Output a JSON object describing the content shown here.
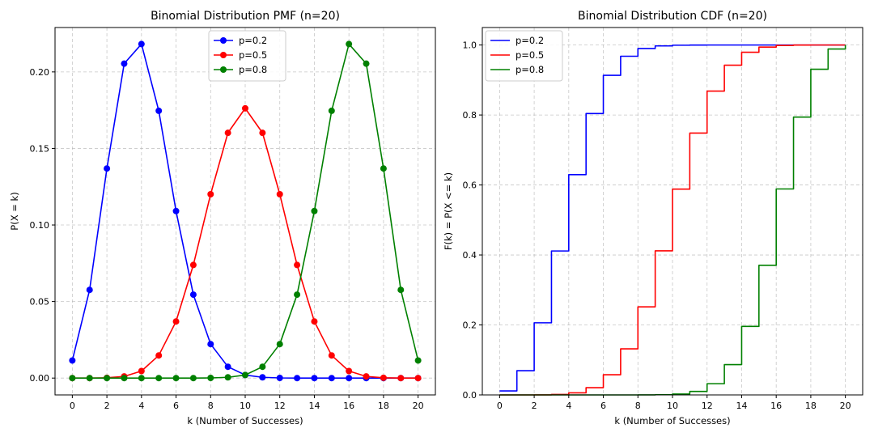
{
  "chart_data": [
    {
      "type": "line",
      "title": "Binomial Distribution PMF (n=20)",
      "xlabel": "k (Number of Successes)",
      "ylabel": "P(X = k)",
      "xlim": [
        -1,
        21
      ],
      "ylim": [
        -0.011,
        0.229
      ],
      "xticks": [
        0,
        2,
        4,
        6,
        8,
        10,
        12,
        14,
        16,
        18,
        20
      ],
      "xtick_labels": [
        "0",
        "2",
        "4",
        "6",
        "8",
        "10",
        "12",
        "14",
        "16",
        "18",
        "20"
      ],
      "yticks": [
        0.0,
        0.05,
        0.1,
        0.15,
        0.2
      ],
      "ytick_labels": [
        "0.00",
        "0.05",
        "0.10",
        "0.15",
        "0.20"
      ],
      "grid": true,
      "legend_position": "upper-center",
      "x": [
        0,
        1,
        2,
        3,
        4,
        5,
        6,
        7,
        8,
        9,
        10,
        11,
        12,
        13,
        14,
        15,
        16,
        17,
        18,
        19,
        20
      ],
      "series": [
        {
          "name": "p=0.2",
          "color": "#0000ff",
          "marker": "circle",
          "values": [
            0.0115,
            0.0576,
            0.1369,
            0.2054,
            0.2182,
            0.1746,
            0.1091,
            0.0545,
            0.0222,
            0.0074,
            0.002,
            0.0005,
            0.0001,
            0.0,
            0.0,
            0.0,
            0.0,
            0.0,
            0.0,
            0.0,
            0.0
          ]
        },
        {
          "name": "p=0.5",
          "color": "#ff0000",
          "marker": "circle",
          "values": [
            0.0,
            0.0,
            0.0002,
            0.0011,
            0.0046,
            0.0148,
            0.037,
            0.0739,
            0.1201,
            0.1602,
            0.1762,
            0.1602,
            0.1201,
            0.0739,
            0.037,
            0.0148,
            0.0046,
            0.0011,
            0.0002,
            0.0,
            0.0
          ]
        },
        {
          "name": "p=0.8",
          "color": "#008000",
          "marker": "circle",
          "values": [
            0.0,
            0.0,
            0.0,
            0.0,
            0.0,
            0.0,
            0.0,
            0.0,
            0.0001,
            0.0005,
            0.002,
            0.0074,
            0.0222,
            0.0545,
            0.1091,
            0.1746,
            0.2182,
            0.2054,
            0.1369,
            0.0576,
            0.0115
          ]
        }
      ]
    },
    {
      "type": "line",
      "style": "step",
      "title": "Binomial Distribution CDF (n=20)",
      "xlabel": "k (Number of Successes)",
      "ylabel": "F(k) = P(X <= k)",
      "xlim": [
        -1,
        21
      ],
      "ylim": [
        0.0,
        1.05
      ],
      "xticks": [
        0,
        2,
        4,
        6,
        8,
        10,
        12,
        14,
        16,
        18,
        20
      ],
      "xtick_labels": [
        "0",
        "2",
        "4",
        "6",
        "8",
        "10",
        "12",
        "14",
        "16",
        "18",
        "20"
      ],
      "yticks": [
        0.0,
        0.2,
        0.4,
        0.6,
        0.8,
        1.0
      ],
      "ytick_labels": [
        "0.0",
        "0.2",
        "0.4",
        "0.6",
        "0.8",
        "1.0"
      ],
      "grid": true,
      "legend_position": "upper-left",
      "x": [
        0,
        1,
        2,
        3,
        4,
        5,
        6,
        7,
        8,
        9,
        10,
        11,
        12,
        13,
        14,
        15,
        16,
        17,
        18,
        19,
        20
      ],
      "series": [
        {
          "name": "p=0.2",
          "color": "#0000ff",
          "values": [
            0.0115,
            0.0692,
            0.2061,
            0.4114,
            0.6296,
            0.8042,
            0.9133,
            0.9679,
            0.99,
            0.9974,
            0.9994,
            0.9999,
            1.0,
            1.0,
            1.0,
            1.0,
            1.0,
            1.0,
            1.0,
            1.0,
            1.0
          ]
        },
        {
          "name": "p=0.5",
          "color": "#ff0000",
          "values": [
            0.0,
            0.0,
            0.0002,
            0.0013,
            0.0059,
            0.0207,
            0.0577,
            0.1316,
            0.2517,
            0.4119,
            0.5881,
            0.7483,
            0.8684,
            0.9423,
            0.9793,
            0.9941,
            0.9987,
            0.9998,
            1.0,
            1.0,
            1.0
          ]
        },
        {
          "name": "p=0.8",
          "color": "#008000",
          "values": [
            0.0,
            0.0,
            0.0,
            0.0,
            0.0,
            0.0,
            0.0,
            0.0,
            0.0001,
            0.0006,
            0.0026,
            0.01,
            0.0321,
            0.0867,
            0.1958,
            0.3704,
            0.5886,
            0.7939,
            0.9308,
            0.9885,
            1.0
          ]
        }
      ]
    }
  ]
}
